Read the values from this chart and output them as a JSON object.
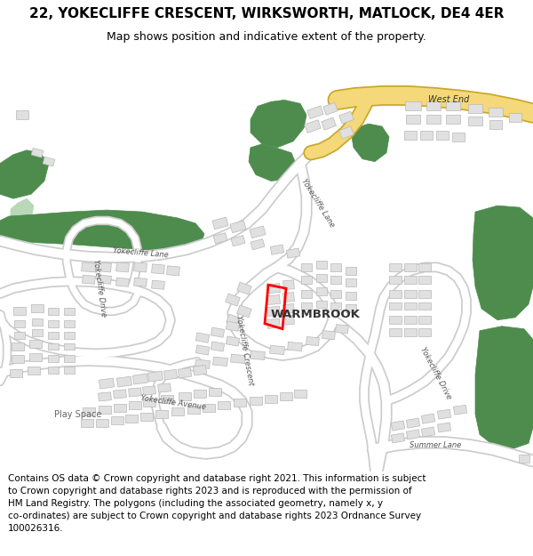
{
  "title": "22, YOKECLIFFE CRESCENT, WIRKSWORTH, MATLOCK, DE4 4ER",
  "subtitle": "Map shows position and indicative extent of the property.",
  "footer": "Contains OS data © Crown copyright and database right 2021. This information is subject\nto Crown copyright and database rights 2023 and is reproduced with the permission of\nHM Land Registry. The polygons (including the associated geometry, namely x, y\nco-ordinates) are subject to Crown copyright and database rights 2023 Ordnance Survey\n100026316.",
  "map_bg": "#ffffff",
  "road_fill": "#ffffff",
  "road_outline": "#cccccc",
  "major_road_fill": "#f5d87a",
  "major_road_outline": "#c8a828",
  "building_fill": "#e0e0e0",
  "building_outline": "#b8b8b8",
  "green_dark": "#4d8c4d",
  "green_light": "#b8d8b8",
  "highlight_red": "#ff0000",
  "text_dark": "#333333",
  "text_road": "#555555",
  "title_fontsize": 11,
  "subtitle_fontsize": 9,
  "footer_fontsize": 7.5
}
